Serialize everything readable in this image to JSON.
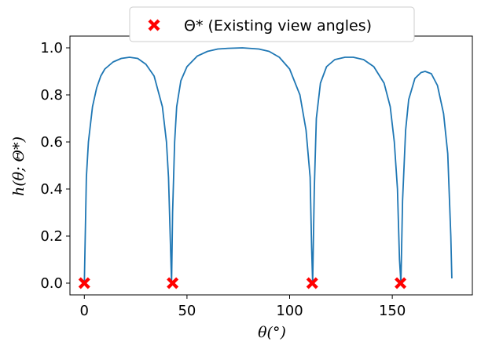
{
  "chart_data": {
    "type": "line",
    "xlabel": "θ(°)",
    "ylabel": "h(θ; Θ*)",
    "xlim": [
      -7,
      189
    ],
    "ylim": [
      -0.05,
      1.05
    ],
    "xticks": [
      0,
      50,
      100,
      150
    ],
    "yticks": [
      0.0,
      0.2,
      0.4,
      0.6,
      0.8,
      1.0
    ],
    "xtick_labels": [
      "0",
      "50",
      "100",
      "150"
    ],
    "ytick_labels": [
      "0.0",
      "0.2",
      "0.4",
      "0.6",
      "0.8",
      "1.0"
    ],
    "grid": false,
    "legend_position": "top-center",
    "series": [
      {
        "type": "line",
        "color": "#1f77b4",
        "x": [
          0,
          1,
          2,
          4,
          6,
          8,
          10,
          14,
          18,
          22,
          26,
          30,
          34,
          38,
          40,
          41,
          42,
          42.5,
          43,
          44,
          45,
          47,
          50,
          55,
          60,
          65,
          70,
          77,
          85,
          90,
          95,
          100,
          105,
          108,
          110,
          110.7,
          111.2,
          112,
          113,
          115,
          118,
          122,
          127,
          131,
          136,
          141,
          146,
          149,
          151,
          152.5,
          153.5,
          154.2,
          155,
          156.5,
          158,
          161,
          164,
          166,
          169,
          172,
          175,
          177,
          178.5,
          179
        ],
        "y": [
          0.0,
          0.45,
          0.6,
          0.75,
          0.83,
          0.88,
          0.91,
          0.94,
          0.955,
          0.96,
          0.955,
          0.93,
          0.88,
          0.75,
          0.6,
          0.45,
          0.15,
          0.0,
          0.3,
          0.6,
          0.75,
          0.86,
          0.92,
          0.965,
          0.985,
          0.995,
          0.998,
          1.0,
          0.995,
          0.985,
          0.96,
          0.91,
          0.8,
          0.65,
          0.45,
          0.15,
          0.0,
          0.4,
          0.7,
          0.85,
          0.92,
          0.95,
          0.96,
          0.96,
          0.95,
          0.92,
          0.85,
          0.75,
          0.6,
          0.4,
          0.1,
          0.0,
          0.35,
          0.65,
          0.78,
          0.87,
          0.895,
          0.9,
          0.89,
          0.84,
          0.72,
          0.55,
          0.2,
          0.02
        ]
      },
      {
        "type": "scatter",
        "name": "Θ* (Existing view angles)",
        "color": "#ff0000",
        "marker": "X",
        "x": [
          0,
          43,
          111,
          154
        ],
        "y": [
          0,
          0,
          0,
          0
        ]
      }
    ]
  }
}
